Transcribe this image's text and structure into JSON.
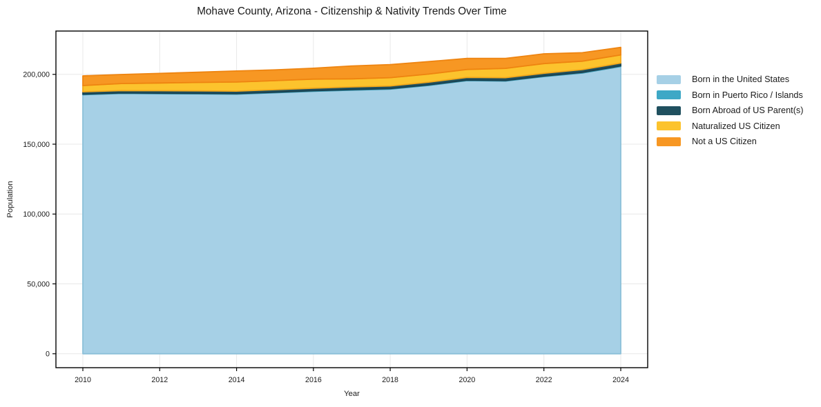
{
  "title": "Mohave County, Arizona - Citizenship & Nativity Trends Over Time",
  "chart_data": {
    "type": "area",
    "stacked": true,
    "title": "Mohave County, Arizona - Citizenship & Nativity Trends Over Time",
    "xlabel": "Year",
    "ylabel": "Population",
    "x": [
      2010,
      2011,
      2012,
      2013,
      2014,
      2015,
      2016,
      2017,
      2018,
      2019,
      2020,
      2021,
      2022,
      2023,
      2024
    ],
    "series": [
      {
        "name": "Born in the United States",
        "color": "#a6d0e6",
        "edge_color": "#8cc0d9",
        "values": [
          185400,
          186300,
          186100,
          186000,
          185800,
          186800,
          187900,
          188700,
          189400,
          192100,
          195500,
          195200,
          198400,
          200900,
          205600
        ]
      },
      {
        "name": "Born in Puerto Rico / Islands",
        "color": "#3ea8c6",
        "edge_color": "#3593ad",
        "values": [
          400,
          400,
          400,
          400,
          400,
          400,
          400,
          400,
          400,
          400,
          400,
          400,
          400,
          500,
          500
        ]
      },
      {
        "name": "Born Abroad of US Parent(s)",
        "color": "#20505f",
        "edge_color": "#1a4250",
        "values": [
          1700,
          1700,
          1800,
          1800,
          1800,
          1800,
          1800,
          1900,
          1900,
          1900,
          1900,
          2000,
          2000,
          2000,
          2000
        ]
      },
      {
        "name": "Naturalized US Citizen",
        "color": "#fcc32d",
        "edge_color": "#f3a81b",
        "values": [
          4500,
          5000,
          5500,
          6000,
          6500,
          6500,
          6500,
          5800,
          5900,
          5800,
          5700,
          6700,
          6900,
          6000,
          5800
        ]
      },
      {
        "name": "Not a US Citizen",
        "color": "#f79723",
        "edge_color": "#ee8410",
        "values": [
          6900,
          6500,
          6900,
          7300,
          7900,
          7700,
          7800,
          9200,
          9400,
          8900,
          7900,
          7100,
          7000,
          6100,
          5400
        ]
      }
    ],
    "xticks": [
      2010,
      2012,
      2014,
      2016,
      2018,
      2020,
      2022,
      2024
    ],
    "xtick_labels": [
      "2010",
      "2012",
      "2014",
      "2016",
      "2018",
      "2020",
      "2022",
      "2024"
    ],
    "yticks": [
      0,
      50000,
      100000,
      150000,
      200000
    ],
    "ytick_labels": [
      "0",
      "50,000",
      "100,000",
      "150,000",
      "200,000"
    ],
    "xlim": [
      2009.3,
      2024.7
    ],
    "ylim": [
      -10000,
      231000
    ],
    "grid": true,
    "grid_color": "#e8e8e8",
    "axis_color": "#000000",
    "text_color": "#1a1a1a",
    "legend_position": "right"
  }
}
